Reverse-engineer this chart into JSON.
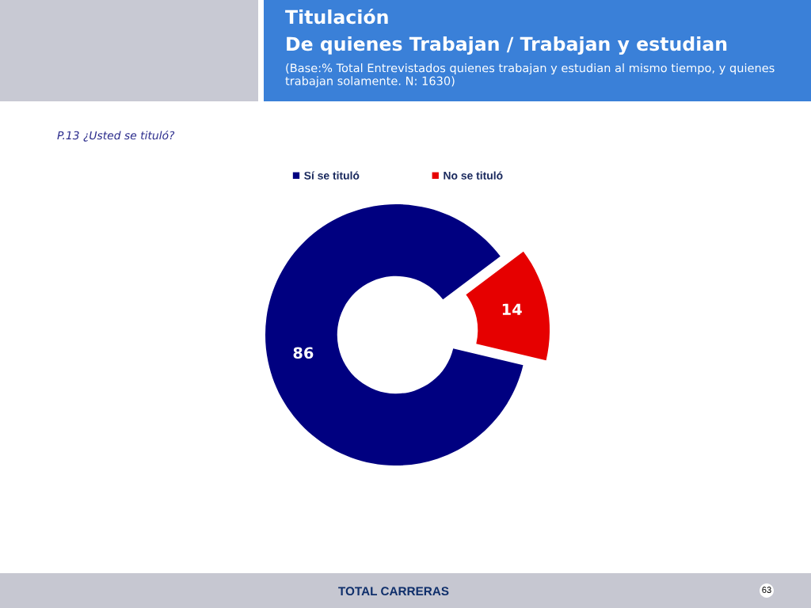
{
  "chart_data": {
    "type": "donut",
    "title": "Titulación",
    "subtitle": "De quienes Trabajan / Trabajan y estudian",
    "annotations": [
      "(Base:% Total Entrevistados quienes trabajan y estudian al mismo tiempo, y quienes trabajan solamente. N: 1630)",
      "P.13 ¿Usted se tituló?",
      "TOTAL CARRERAS",
      "63"
    ],
    "categories": [
      "Sí se tituló",
      "No se tituló"
    ],
    "values": [
      86,
      14
    ],
    "colors": [
      "#000080",
      "#e60000"
    ],
    "data_labels": true,
    "legend": "top"
  }
}
